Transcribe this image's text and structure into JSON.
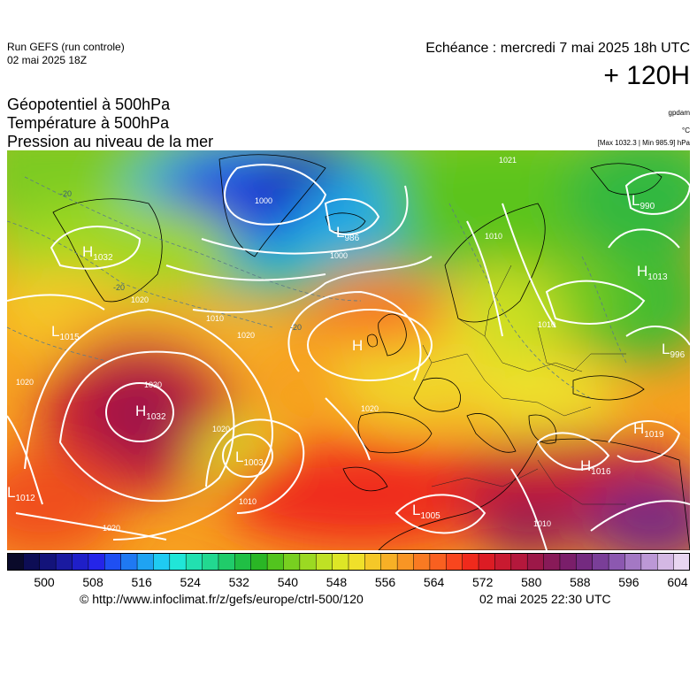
{
  "header": {
    "run_label": "Run GEFS (run controle)",
    "run_date": "02 mai 2025 18Z",
    "echeance": "Echéance : mercredi 7 mai 2025 18h UTC",
    "lead_time": "+ 120H"
  },
  "parameters": [
    "Géopotentiel à 500hPa",
    "Température à 500hPa",
    "Pression au niveau de la mer"
  ],
  "units": {
    "geopotential": "gpdam",
    "temperature": "°C",
    "pressure_range": "[Max 1032.3 | Min 985.9] hPa"
  },
  "colorbar": {
    "ticks": [
      "500",
      "508",
      "516",
      "524",
      "532",
      "540",
      "548",
      "556",
      "564",
      "572",
      "580",
      "588",
      "596",
      "604"
    ],
    "colors": [
      "#0a0a2a",
      "#0d0d55",
      "#13137a",
      "#1a1aa0",
      "#1f1fc8",
      "#2525e8",
      "#1f4ff2",
      "#1f79f2",
      "#1fa3f2",
      "#1fcbf2",
      "#20e6d8",
      "#22e0b0",
      "#22d890",
      "#20cc6a",
      "#20bf45",
      "#2ab625",
      "#52c41e",
      "#78cf20",
      "#9bd922",
      "#bfe124",
      "#dde626",
      "#f0e02a",
      "#f5c828",
      "#f7b026",
      "#f89524",
      "#f97a22",
      "#f96020",
      "#f8461e",
      "#ef2a1c",
      "#dc1c24",
      "#c81a30",
      "#b4183c",
      "#9c1848",
      "#881a58",
      "#7a1e6a",
      "#742a80",
      "#7a3e98",
      "#8c58b0",
      "#a478c4",
      "#bc98d6",
      "#d4b8e4",
      "#e8d6f0"
    ]
  },
  "chart_data": {
    "type": "heatmap",
    "variable": "Géopotentiel à 500hPa (gpdam) + Pression au niveau de la mer (hPa)",
    "color_scale_range": [
      500,
      604
    ],
    "pressure_extremes_hPa": {
      "max": 1032.3,
      "min": 985.9
    },
    "centers": [
      {
        "type": "H",
        "value": "1032",
        "where": "west Atlantic, near Azores"
      },
      {
        "type": "H",
        "value": "1032",
        "where": "off southern Greenland"
      },
      {
        "type": "H",
        "value": "",
        "where": "British Isles"
      },
      {
        "type": "H",
        "value": "1013",
        "where": "Russia"
      },
      {
        "type": "H",
        "value": "1016",
        "where": "eastern Mediterranean"
      },
      {
        "type": "H",
        "value": "1019",
        "where": "Black Sea"
      },
      {
        "type": "L",
        "value": "990",
        "where": "Barents Sea"
      },
      {
        "type": "L",
        "value": "986",
        "where": "Iceland"
      },
      {
        "type": "L",
        "value": "996",
        "where": "eastern Europe"
      },
      {
        "type": "L",
        "value": "1005",
        "where": "Atlas"
      },
      {
        "type": "L",
        "value": "1012",
        "where": "southwest Atlantic"
      },
      {
        "type": "L",
        "value": "1003",
        "where": "Madeira area"
      },
      {
        "type": "L",
        "value": "1015",
        "where": "Newfoundland"
      }
    ],
    "isobar_labels": [
      "1000",
      "1000",
      "1010",
      "1010",
      "1010",
      "1020",
      "1020",
      "1020",
      "1020",
      "1020",
      "1030",
      "1020",
      "1010",
      "1010",
      "1021"
    ],
    "isotherm_labels": [
      "-20",
      "-20",
      "-20"
    ]
  },
  "footer": {
    "url": "© http://www.infoclimat.fr/z/gefs/europe/ctrl-500/120",
    "generated": "02 mai 2025 22:30 UTC"
  }
}
